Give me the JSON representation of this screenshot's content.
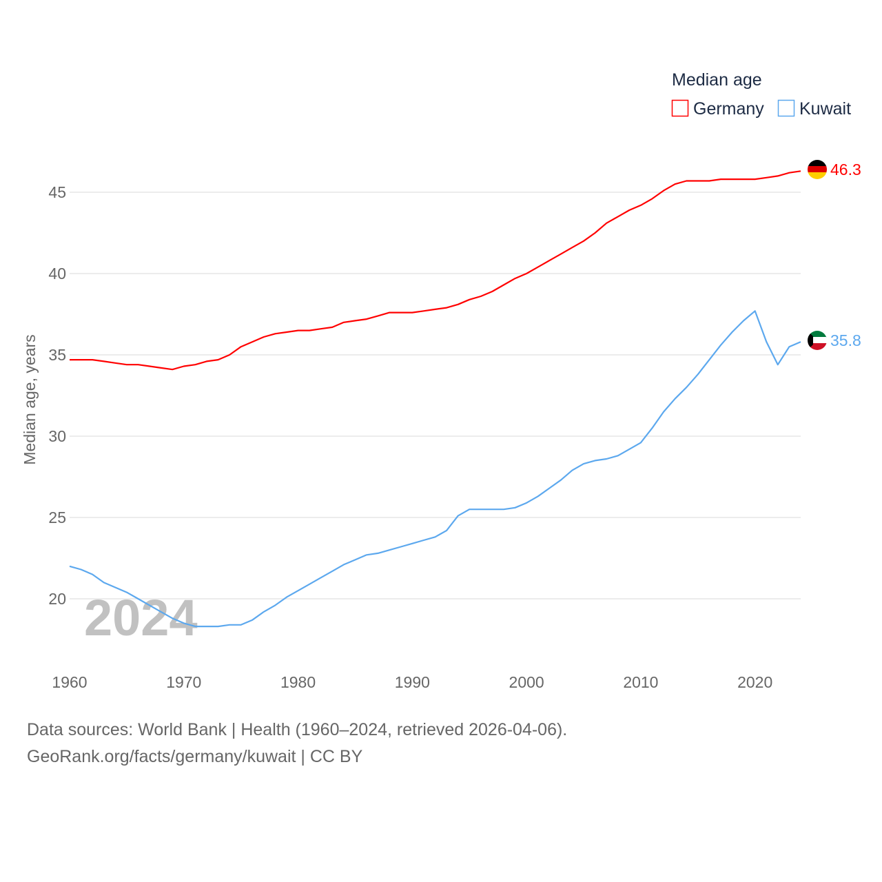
{
  "chart_data": {
    "type": "line",
    "title": "Median age",
    "xlabel": "",
    "ylabel": "Median age, years",
    "watermark_year": "2024",
    "xlim": [
      1960,
      2024
    ],
    "ylim": [
      17,
      47
    ],
    "grid": true,
    "legend_position": "top-right",
    "x_ticks": [
      "1960",
      "1970",
      "1980",
      "1990",
      "2000",
      "2010",
      "2020"
    ],
    "y_ticks": [
      "20",
      "25",
      "30",
      "35",
      "40",
      "45"
    ],
    "x": [
      1960,
      1961,
      1962,
      1963,
      1964,
      1965,
      1966,
      1967,
      1968,
      1969,
      1970,
      1971,
      1972,
      1973,
      1974,
      1975,
      1976,
      1977,
      1978,
      1979,
      1980,
      1981,
      1982,
      1983,
      1984,
      1985,
      1986,
      1987,
      1988,
      1989,
      1990,
      1991,
      1992,
      1993,
      1994,
      1995,
      1996,
      1997,
      1998,
      1999,
      2000,
      2001,
      2002,
      2003,
      2004,
      2005,
      2006,
      2007,
      2008,
      2009,
      2010,
      2011,
      2012,
      2013,
      2014,
      2015,
      2016,
      2017,
      2018,
      2019,
      2020,
      2021,
      2022,
      2023,
      2024
    ],
    "series": [
      {
        "name": "Germany",
        "color": "#ff0000",
        "end_label": "46.3",
        "values": [
          34.7,
          34.7,
          34.7,
          34.6,
          34.5,
          34.4,
          34.4,
          34.3,
          34.2,
          34.1,
          34.3,
          34.4,
          34.6,
          34.7,
          35.0,
          35.5,
          35.8,
          36.1,
          36.3,
          36.4,
          36.5,
          36.5,
          36.6,
          36.7,
          37.0,
          37.1,
          37.2,
          37.4,
          37.6,
          37.6,
          37.6,
          37.7,
          37.8,
          37.9,
          38.1,
          38.4,
          38.6,
          38.9,
          39.3,
          39.7,
          40.0,
          40.4,
          40.8,
          41.2,
          41.6,
          42.0,
          42.5,
          43.1,
          43.5,
          43.9,
          44.2,
          44.6,
          45.1,
          45.5,
          45.7,
          45.7,
          45.7,
          45.8,
          45.8,
          45.8,
          45.8,
          45.9,
          46.0,
          46.2,
          46.3
        ]
      },
      {
        "name": "Kuwait",
        "color": "#5ca8ee",
        "end_label": "35.8",
        "values": [
          22.0,
          21.8,
          21.5,
          21.0,
          20.7,
          20.4,
          20.0,
          19.6,
          19.2,
          18.8,
          18.5,
          18.3,
          18.3,
          18.3,
          18.4,
          18.4,
          18.7,
          19.2,
          19.6,
          20.1,
          20.5,
          20.9,
          21.3,
          21.7,
          22.1,
          22.4,
          22.7,
          22.8,
          23.0,
          23.2,
          23.4,
          23.6,
          23.8,
          24.2,
          25.1,
          25.5,
          25.5,
          25.5,
          25.5,
          25.6,
          25.9,
          26.3,
          26.8,
          27.3,
          27.9,
          28.3,
          28.5,
          28.6,
          28.8,
          29.2,
          29.6,
          30.5,
          31.5,
          32.3,
          33.0,
          33.8,
          34.7,
          35.6,
          36.4,
          37.1,
          37.7,
          35.8,
          34.4,
          35.5,
          35.8
        ]
      }
    ]
  },
  "footer": {
    "line1": "Data sources: World Bank | Health (1960–2024, retrieved 2026-04-06).",
    "line2": "GeoRank.org/facts/germany/kuwait | CC BY"
  }
}
